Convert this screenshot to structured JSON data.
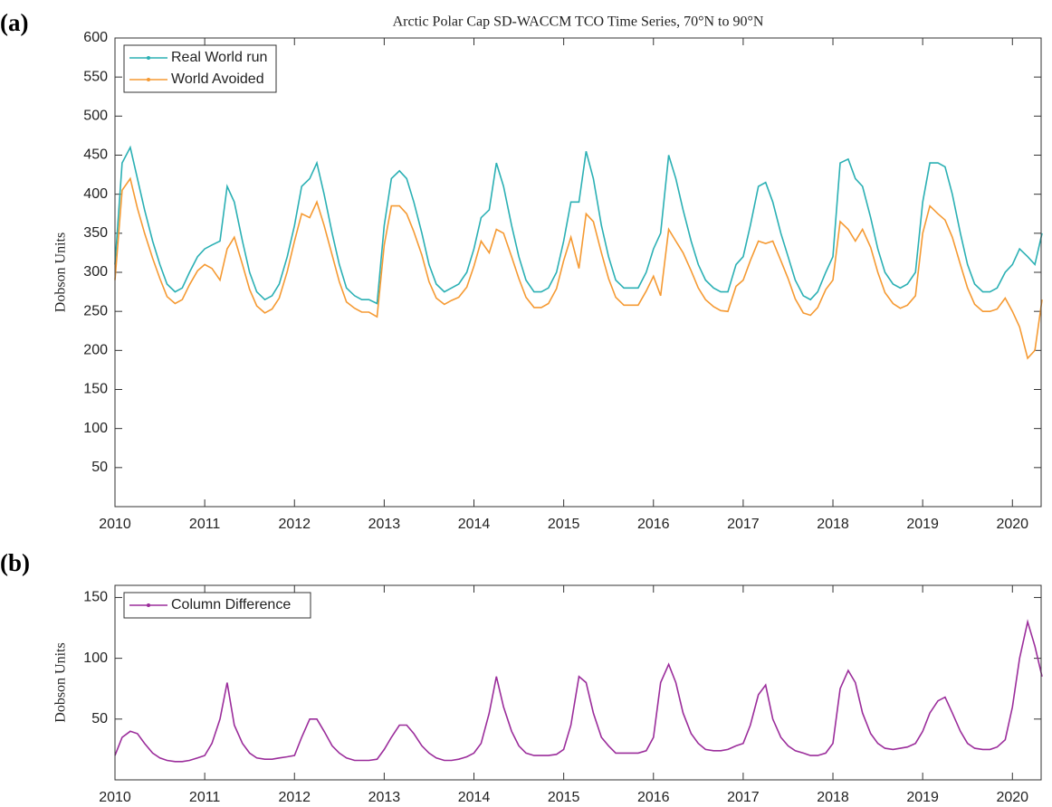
{
  "chart_data": [
    {
      "type": "line",
      "panel_label": "(a)",
      "title": "Arctic Polar Cap SD-WACCM TCO Time Series, 70°N to 90°N",
      "y_label": "Dobson Units",
      "xlim": [
        2010,
        2020.32
      ],
      "xticks": [
        2010,
        2011,
        2012,
        2013,
        2014,
        2015,
        2016,
        2017,
        2018,
        2019,
        2020
      ],
      "ylim": [
        0,
        600
      ],
      "yticks": [
        50,
        100,
        150,
        200,
        250,
        300,
        350,
        400,
        450,
        500,
        550,
        600
      ],
      "legend": "northwest",
      "x": [
        2010.0,
        2010.08,
        2010.17,
        2010.25,
        2010.33,
        2010.42,
        2010.5,
        2010.58,
        2010.67,
        2010.75,
        2010.83,
        2010.92,
        2011.0,
        2011.08,
        2011.17,
        2011.25,
        2011.33,
        2011.42,
        2011.5,
        2011.58,
        2011.67,
        2011.75,
        2011.83,
        2011.92,
        2012.0,
        2012.08,
        2012.17,
        2012.25,
        2012.33,
        2012.42,
        2012.5,
        2012.58,
        2012.67,
        2012.75,
        2012.83,
        2012.92,
        2013.0,
        2013.08,
        2013.17,
        2013.25,
        2013.33,
        2013.42,
        2013.5,
        2013.58,
        2013.67,
        2013.75,
        2013.83,
        2013.92,
        2014.0,
        2014.08,
        2014.17,
        2014.25,
        2014.33,
        2014.42,
        2014.5,
        2014.58,
        2014.67,
        2014.75,
        2014.83,
        2014.92,
        2015.0,
        2015.08,
        2015.17,
        2015.25,
        2015.33,
        2015.42,
        2015.5,
        2015.58,
        2015.67,
        2015.75,
        2015.83,
        2015.92,
        2016.0,
        2016.08,
        2016.17,
        2016.25,
        2016.33,
        2016.42,
        2016.5,
        2016.58,
        2016.67,
        2016.75,
        2016.83,
        2016.92,
        2017.0,
        2017.08,
        2017.17,
        2017.25,
        2017.33,
        2017.42,
        2017.5,
        2017.58,
        2017.67,
        2017.75,
        2017.83,
        2017.92,
        2018.0,
        2018.08,
        2018.17,
        2018.25,
        2018.33,
        2018.42,
        2018.5,
        2018.58,
        2018.67,
        2018.75,
        2018.83,
        2018.92,
        2019.0,
        2019.08,
        2019.17,
        2019.25,
        2019.33,
        2019.42,
        2019.5,
        2019.58,
        2019.67,
        2019.75,
        2019.83,
        2019.92,
        2020.0,
        2020.08,
        2020.17,
        2020.25,
        2020.33
      ],
      "series": [
        {
          "name": "Real World run",
          "color": "#2bb0b4",
          "values": [
            310,
            440,
            460,
            420,
            380,
            340,
            310,
            285,
            275,
            280,
            300,
            320,
            330,
            335,
            340,
            410,
            390,
            340,
            300,
            275,
            265,
            270,
            285,
            320,
            360,
            410,
            420,
            440,
            400,
            350,
            310,
            280,
            270,
            265,
            265,
            260,
            360,
            420,
            430,
            420,
            390,
            350,
            310,
            285,
            275,
            280,
            285,
            300,
            330,
            370,
            380,
            440,
            410,
            360,
            320,
            290,
            275,
            275,
            280,
            300,
            340,
            390,
            390,
            455,
            420,
            360,
            320,
            290,
            280,
            280,
            280,
            300,
            330,
            350,
            450,
            420,
            380,
            340,
            310,
            290,
            280,
            275,
            275,
            310,
            320,
            360,
            410,
            415,
            390,
            350,
            320,
            290,
            270,
            265,
            275,
            300,
            320,
            440,
            445,
            420,
            410,
            370,
            330,
            300,
            285,
            280,
            285,
            300,
            390,
            440,
            440,
            435,
            400,
            350,
            310,
            285,
            275,
            275,
            280,
            300,
            310,
            330,
            320,
            310,
            350
          ]
        },
        {
          "name": "World Avoided",
          "color": "#f59a33",
          "values": [
            290,
            405,
            420,
            382,
            350,
            318,
            292,
            269,
            260,
            265,
            284,
            302,
            310,
            305,
            290,
            330,
            345,
            310,
            278,
            257,
            248,
            253,
            267,
            301,
            340,
            375,
            370,
            390,
            360,
            322,
            288,
            262,
            254,
            249,
            249,
            243,
            335,
            385,
            385,
            375,
            352,
            322,
            288,
            267,
            259,
            264,
            268,
            281,
            308,
            340,
            325,
            355,
            350,
            320,
            292,
            268,
            255,
            255,
            260,
            279,
            315,
            345,
            305,
            375,
            365,
            325,
            292,
            268,
            258,
            258,
            258,
            276,
            295,
            270,
            355,
            340,
            325,
            302,
            280,
            265,
            256,
            251,
            250,
            282,
            290,
            315,
            340,
            337,
            340,
            315,
            292,
            266,
            248,
            245,
            255,
            278,
            290,
            365,
            355,
            340,
            355,
            332,
            300,
            274,
            260,
            254,
            258,
            270,
            350,
            385,
            375,
            367,
            345,
            310,
            280,
            259,
            250,
            250,
            253,
            267,
            250,
            230,
            190,
            200,
            265
          ]
        }
      ]
    },
    {
      "type": "line",
      "panel_label": "(b)",
      "y_label": "Dobson Units",
      "xlim": [
        2010,
        2020.32
      ],
      "xticks": [
        2010,
        2011,
        2012,
        2013,
        2014,
        2015,
        2016,
        2017,
        2018,
        2019,
        2020
      ],
      "ylim": [
        0,
        160
      ],
      "yticks": [
        50,
        100,
        150
      ],
      "legend": "northwest",
      "x": [
        2010.0,
        2010.08,
        2010.17,
        2010.25,
        2010.33,
        2010.42,
        2010.5,
        2010.58,
        2010.67,
        2010.75,
        2010.83,
        2010.92,
        2011.0,
        2011.08,
        2011.17,
        2011.25,
        2011.33,
        2011.42,
        2011.5,
        2011.58,
        2011.67,
        2011.75,
        2011.83,
        2011.92,
        2012.0,
        2012.08,
        2012.17,
        2012.25,
        2012.33,
        2012.42,
        2012.5,
        2012.58,
        2012.67,
        2012.75,
        2012.83,
        2012.92,
        2013.0,
        2013.08,
        2013.17,
        2013.25,
        2013.33,
        2013.42,
        2013.5,
        2013.58,
        2013.67,
        2013.75,
        2013.83,
        2013.92,
        2014.0,
        2014.08,
        2014.17,
        2014.25,
        2014.33,
        2014.42,
        2014.5,
        2014.58,
        2014.67,
        2014.75,
        2014.83,
        2014.92,
        2015.0,
        2015.08,
        2015.17,
        2015.25,
        2015.33,
        2015.42,
        2015.5,
        2015.58,
        2015.67,
        2015.75,
        2015.83,
        2015.92,
        2016.0,
        2016.08,
        2016.17,
        2016.25,
        2016.33,
        2016.42,
        2016.5,
        2016.58,
        2016.67,
        2016.75,
        2016.83,
        2016.92,
        2017.0,
        2017.08,
        2017.17,
        2017.25,
        2017.33,
        2017.42,
        2017.5,
        2017.58,
        2017.67,
        2017.75,
        2017.83,
        2017.92,
        2018.0,
        2018.08,
        2018.17,
        2018.25,
        2018.33,
        2018.42,
        2018.5,
        2018.58,
        2018.67,
        2018.75,
        2018.83,
        2018.92,
        2019.0,
        2019.08,
        2019.17,
        2019.25,
        2019.33,
        2019.42,
        2019.5,
        2019.58,
        2019.67,
        2019.75,
        2019.83,
        2019.92,
        2020.0,
        2020.08,
        2020.17,
        2020.25,
        2020.33
      ],
      "series": [
        {
          "name": "Column Difference",
          "color": "#9b2d9b",
          "values": [
            20,
            35,
            40,
            38,
            30,
            22,
            18,
            16,
            15,
            15,
            16,
            18,
            20,
            30,
            50,
            80,
            45,
            30,
            22,
            18,
            17,
            17,
            18,
            19,
            20,
            35,
            50,
            50,
            40,
            28,
            22,
            18,
            16,
            16,
            16,
            17,
            25,
            35,
            45,
            45,
            38,
            28,
            22,
            18,
            16,
            16,
            17,
            19,
            22,
            30,
            55,
            85,
            60,
            40,
            28,
            22,
            20,
            20,
            20,
            21,
            25,
            45,
            85,
            80,
            55,
            35,
            28,
            22,
            22,
            22,
            22,
            24,
            35,
            80,
            95,
            80,
            55,
            38,
            30,
            25,
            24,
            24,
            25,
            28,
            30,
            45,
            70,
            78,
            50,
            35,
            28,
            24,
            22,
            20,
            20,
            22,
            30,
            75,
            90,
            80,
            55,
            38,
            30,
            26,
            25,
            26,
            27,
            30,
            40,
            55,
            65,
            68,
            55,
            40,
            30,
            26,
            25,
            25,
            27,
            33,
            60,
            100,
            130,
            110,
            85
          ]
        }
      ]
    }
  ]
}
